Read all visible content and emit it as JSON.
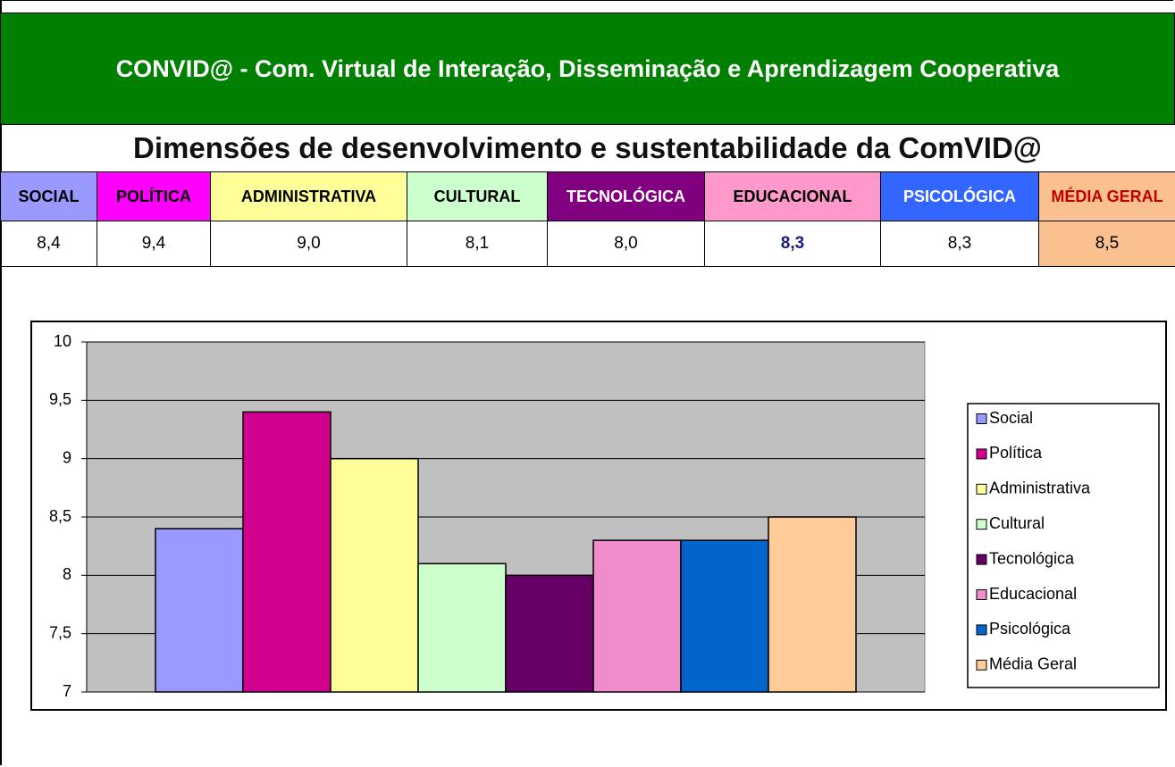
{
  "header": {
    "title": "CONVID@ - Com. Virtual de Interação, Disseminação e Aprendizagem Cooperativa"
  },
  "subtitle": "Dimensões de desenvolvimento e sustentabilidade da ComVID@",
  "table": {
    "columns": [
      "SOCIAL",
      "POLÍTICA",
      "ADMINISTRATIVA",
      "CULTURAL",
      "TECNOLÓGICA",
      "EDUCACIONAL",
      "PSICOLÓGICA",
      "MÉDIA GERAL"
    ],
    "rows": [
      [
        "8,4",
        "9,4",
        "9,0",
        "8,1",
        "8,0",
        "8,3",
        "8,3",
        "8,5"
      ]
    ]
  },
  "chart_data": {
    "type": "bar",
    "series": [
      {
        "name": "Social",
        "color": "#9999ff",
        "values": [
          8.4
        ]
      },
      {
        "name": "Política",
        "color": "#d1008f",
        "values": [
          9.4
        ]
      },
      {
        "name": "Administrativa",
        "color": "#ffff99",
        "values": [
          9.0
        ]
      },
      {
        "name": "Cultural",
        "color": "#ccffcc",
        "values": [
          8.1
        ]
      },
      {
        "name": "Tecnológica",
        "color": "#660066",
        "values": [
          8.0
        ]
      },
      {
        "name": "Educacional",
        "color": "#f08ccc",
        "values": [
          8.3
        ]
      },
      {
        "name": "Psicológica",
        "color": "#0066cc",
        "values": [
          8.3
        ]
      },
      {
        "name": "Média Geral",
        "color": "#ffcc99",
        "values": [
          8.5
        ]
      }
    ],
    "ylim": [
      7,
      10
    ],
    "yticks": [
      7,
      {
        "value": 7.5,
        "label": "7,5"
      },
      8,
      {
        "value": 8.5,
        "label": "8,5"
      },
      9,
      {
        "value": 9.5,
        "label": "9,5"
      },
      10
    ],
    "grid": true,
    "legend": "right"
  }
}
